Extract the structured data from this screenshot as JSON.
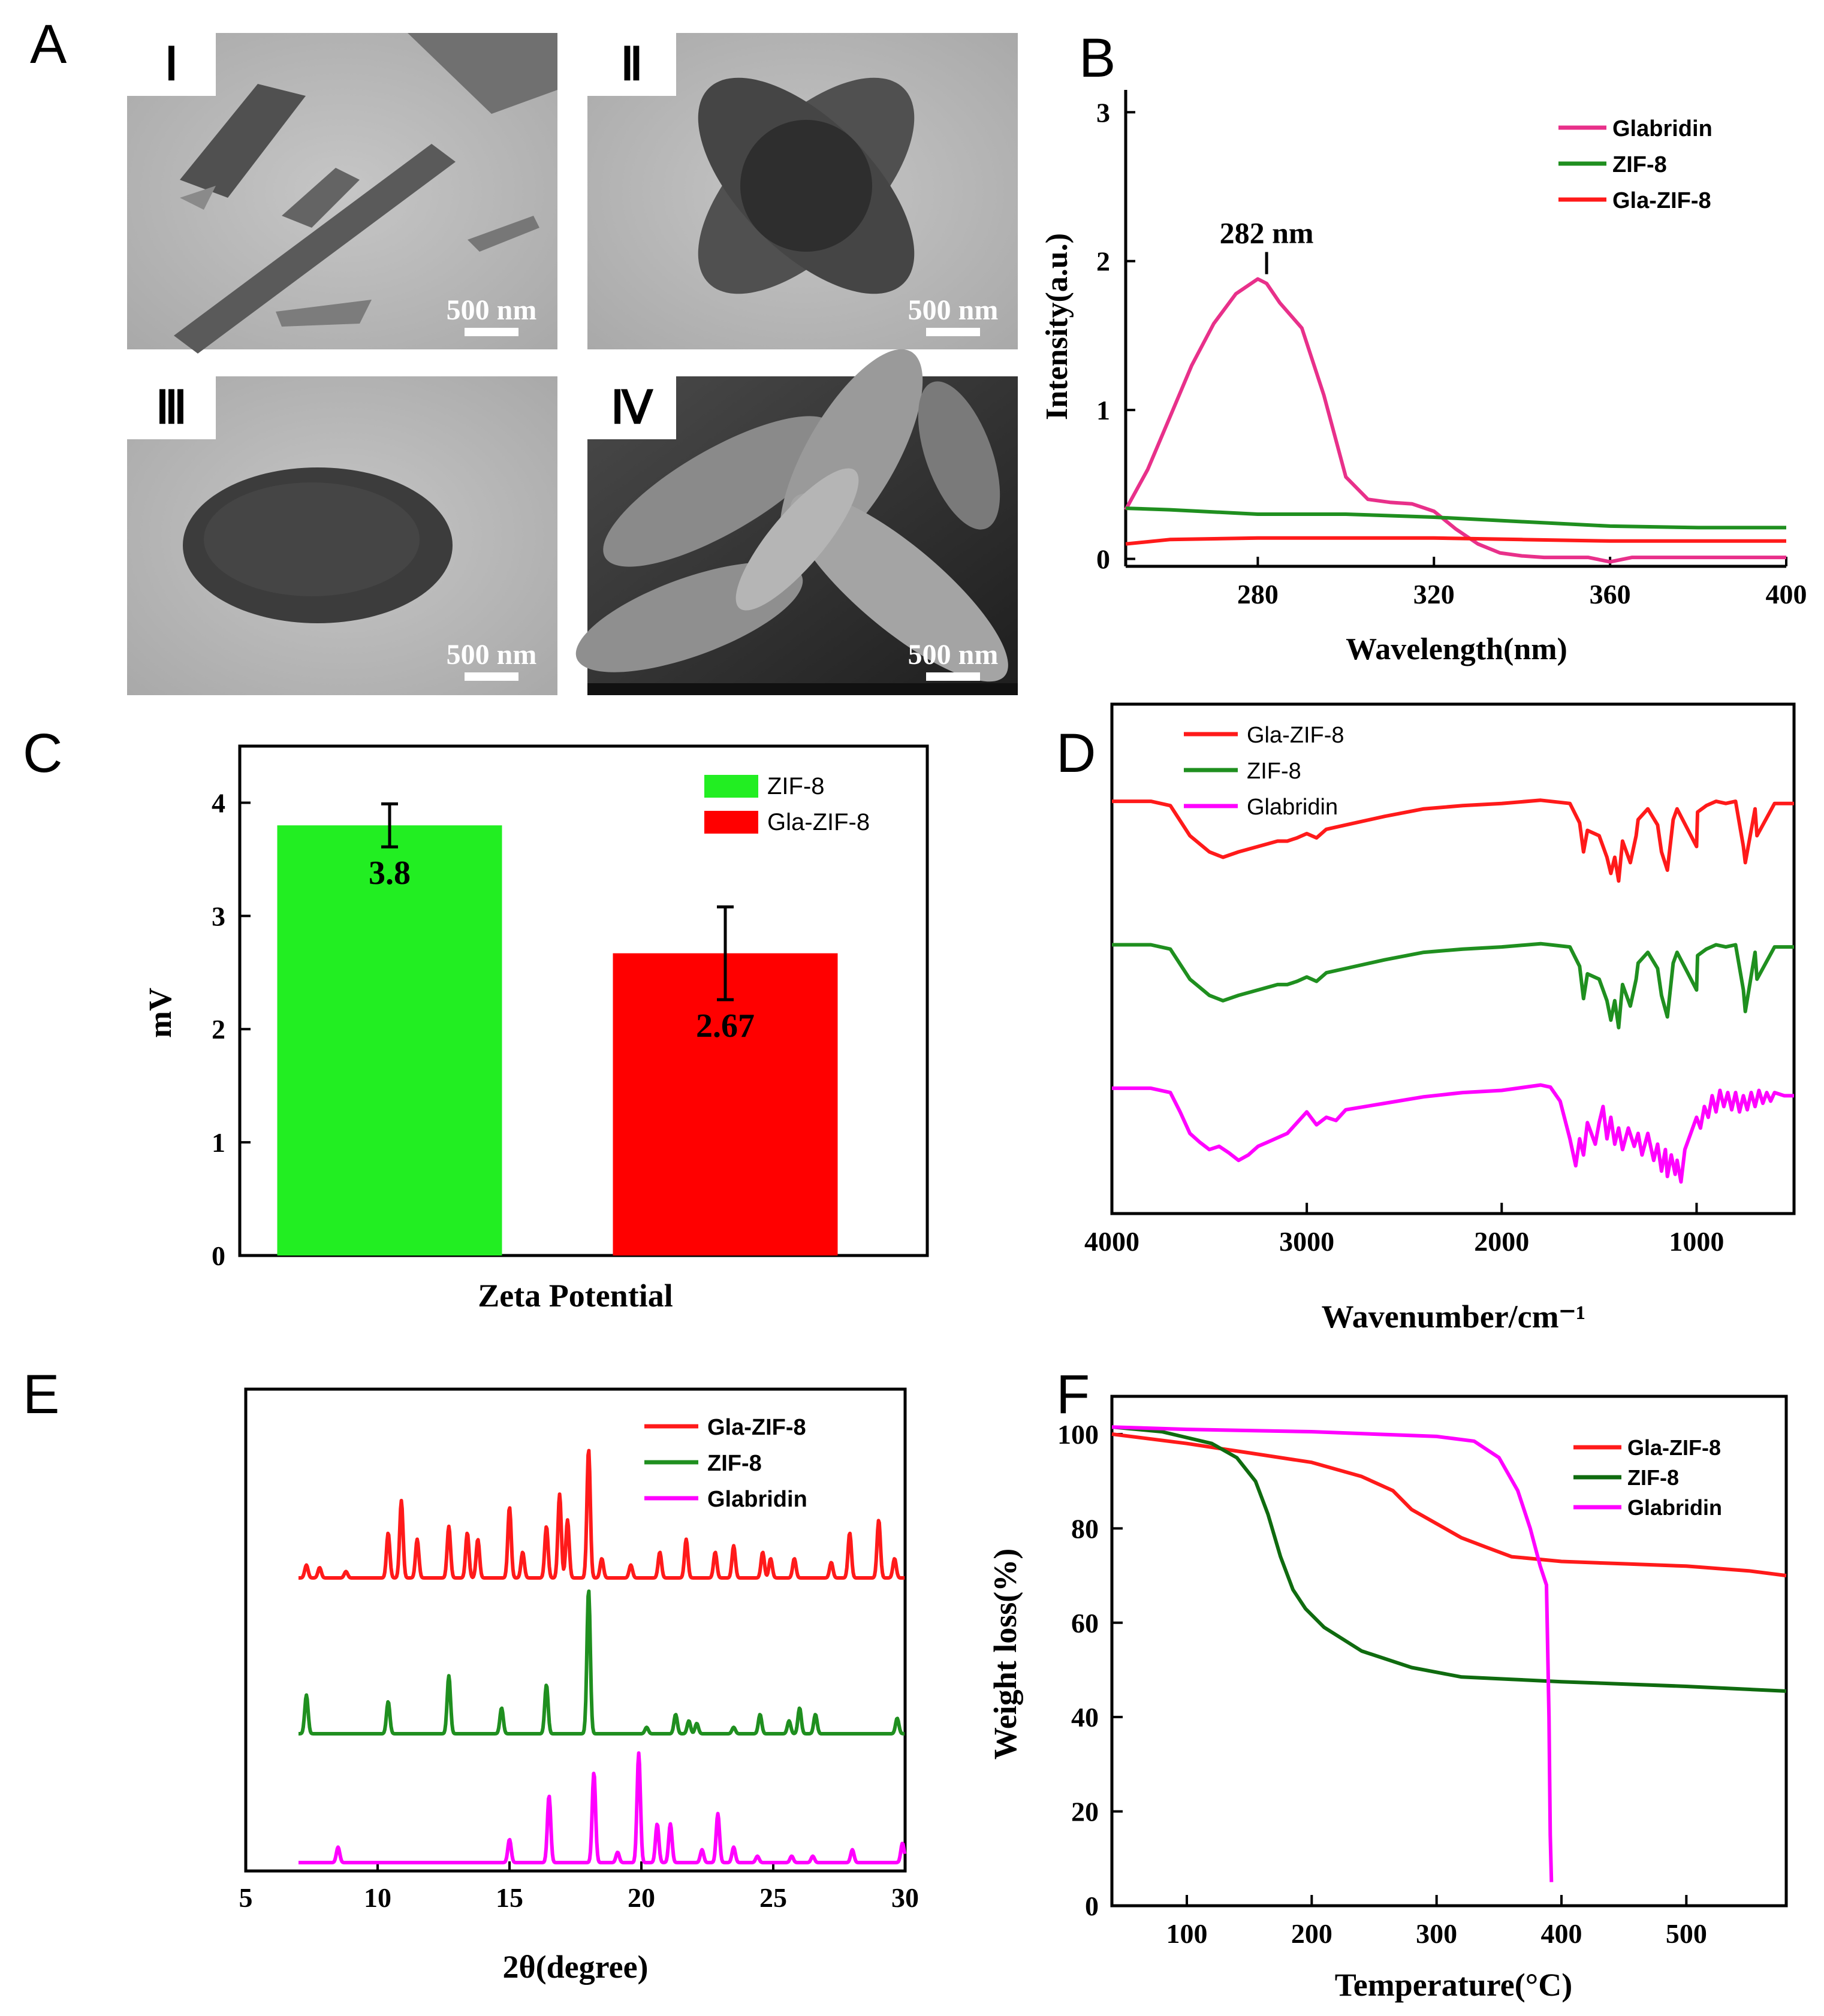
{
  "panel_letters": {
    "A": "A",
    "B": "B",
    "C": "C",
    "D": "D",
    "E": "E",
    "F": "F"
  },
  "micrographs": [
    {
      "label": "Ⅰ",
      "scale": "500 nm",
      "shape": "rods"
    },
    {
      "label": "Ⅱ",
      "scale": "500 nm",
      "shape": "cross"
    },
    {
      "label": "Ⅲ",
      "scale": "500 nm",
      "shape": "ellipse"
    },
    {
      "label": "Ⅳ",
      "scale": "500 nm",
      "shape": "sem"
    }
  ],
  "colors": {
    "pink": "#e8308a",
    "green": "#1f8f1f",
    "red": "#ff1a1a",
    "magenta": "#ff00ff",
    "darkgreen": "#0f6b0f",
    "bar_green": "#22ee22",
    "bar_red": "#ff0000"
  },
  "chart_data": [
    {
      "panel": "B",
      "type": "line",
      "xlabel": "Wavelength(nm)",
      "ylabel": "Intensity(a.u.)",
      "xlim": [
        250,
        400
      ],
      "ylim": [
        -0.05,
        3.15
      ],
      "xticks": [
        280,
        320,
        360,
        400
      ],
      "yticks": [
        0,
        1,
        2,
        3
      ],
      "annotation": {
        "text": "282 nm",
        "x": 282,
        "y": 1.88
      },
      "legend": "top-right",
      "series": [
        {
          "name": "Glabridin",
          "color": "#e8308a",
          "x": [
            250,
            255,
            260,
            265,
            270,
            275,
            280,
            282,
            285,
            290,
            295,
            300,
            305,
            310,
            315,
            320,
            325,
            330,
            335,
            340,
            345,
            350,
            355,
            360,
            365,
            370,
            380,
            390,
            400
          ],
          "y": [
            0.33,
            0.6,
            0.95,
            1.3,
            1.58,
            1.78,
            1.88,
            1.85,
            1.72,
            1.55,
            1.1,
            0.55,
            0.4,
            0.38,
            0.37,
            0.32,
            0.2,
            0.1,
            0.04,
            0.02,
            0.01,
            0.01,
            0.01,
            -0.02,
            0.01,
            0.01,
            0.01,
            0.01,
            0.01
          ]
        },
        {
          "name": "ZIF-8",
          "color": "#1f8f1f",
          "x": [
            250,
            260,
            280,
            300,
            320,
            340,
            360,
            380,
            400
          ],
          "y": [
            0.34,
            0.33,
            0.3,
            0.3,
            0.28,
            0.25,
            0.22,
            0.21,
            0.21
          ]
        },
        {
          "name": "Gla-ZIF-8",
          "color": "#ff1a1a",
          "x": [
            250,
            260,
            280,
            300,
            320,
            340,
            360,
            380,
            400
          ],
          "y": [
            0.1,
            0.13,
            0.14,
            0.14,
            0.14,
            0.13,
            0.12,
            0.12,
            0.12
          ]
        }
      ]
    },
    {
      "panel": "C",
      "type": "bar",
      "xlabel": "Zeta Potential",
      "ylabel": "mV",
      "ylim": [
        0,
        4.5
      ],
      "yticks": [
        0,
        1,
        2,
        3,
        4
      ],
      "legend": "top-right",
      "categories": [
        "ZIF-8",
        "Gla-ZIF-8"
      ],
      "values": [
        3.8,
        2.67
      ],
      "errors": [
        0.19,
        0.41
      ],
      "value_labels": [
        "3.8",
        "2.67"
      ],
      "bar_colors": [
        "#22ee22",
        "#ff0000"
      ]
    },
    {
      "panel": "D",
      "type": "line",
      "xlabel": "Wavenumber/cm⁻¹",
      "xlim": [
        4000,
        500
      ],
      "xticks": [
        4000,
        3000,
        2000,
        1000
      ],
      "legend": "top-left",
      "series": [
        {
          "name": "Gla-ZIF-8",
          "color": "#ff1a1a",
          "offset": 2.0,
          "x": [
            4000,
            3800,
            3700,
            3600,
            3500,
            3430,
            3350,
            3250,
            3150,
            3100,
            3050,
            3000,
            2950,
            2900,
            2800,
            2600,
            2400,
            2200,
            2000,
            1800,
            1650,
            1600,
            1580,
            1560,
            1500,
            1460,
            1440,
            1420,
            1400,
            1380,
            1340,
            1310,
            1300,
            1250,
            1200,
            1180,
            1150,
            1120,
            1100,
            1000,
            995,
            950,
            900,
            850,
            800,
            760,
            750,
            700,
            690,
            600,
            500
          ],
          "y": [
            0.92,
            0.92,
            0.88,
            0.6,
            0.45,
            0.4,
            0.45,
            0.5,
            0.55,
            0.55,
            0.58,
            0.62,
            0.58,
            0.66,
            0.7,
            0.78,
            0.85,
            0.88,
            0.9,
            0.93,
            0.9,
            0.72,
            0.45,
            0.65,
            0.6,
            0.4,
            0.25,
            0.4,
            0.18,
            0.55,
            0.35,
            0.6,
            0.75,
            0.85,
            0.7,
            0.45,
            0.28,
            0.75,
            0.85,
            0.5,
            0.82,
            0.88,
            0.92,
            0.9,
            0.92,
            0.5,
            0.35,
            0.85,
            0.6,
            0.9,
            0.9
          ]
        },
        {
          "name": "ZIF-8",
          "color": "#1f8f1f",
          "offset": 1.0,
          "x": [
            4000,
            3800,
            3700,
            3600,
            3500,
            3430,
            3350,
            3250,
            3150,
            3100,
            3050,
            3000,
            2950,
            2900,
            2800,
            2600,
            2400,
            2200,
            2000,
            1800,
            1650,
            1600,
            1580,
            1560,
            1500,
            1460,
            1440,
            1420,
            1400,
            1380,
            1340,
            1310,
            1300,
            1250,
            1200,
            1180,
            1150,
            1120,
            1100,
            1000,
            995,
            950,
            900,
            850,
            800,
            760,
            750,
            700,
            690,
            600,
            500
          ],
          "y": [
            0.92,
            0.92,
            0.88,
            0.6,
            0.45,
            0.4,
            0.45,
            0.5,
            0.55,
            0.55,
            0.58,
            0.62,
            0.58,
            0.66,
            0.7,
            0.78,
            0.85,
            0.88,
            0.9,
            0.93,
            0.9,
            0.72,
            0.42,
            0.65,
            0.6,
            0.4,
            0.22,
            0.4,
            0.15,
            0.55,
            0.35,
            0.6,
            0.75,
            0.85,
            0.7,
            0.45,
            0.25,
            0.75,
            0.85,
            0.5,
            0.82,
            0.88,
            0.92,
            0.9,
            0.92,
            0.5,
            0.3,
            0.85,
            0.6,
            0.9,
            0.9
          ]
        },
        {
          "name": "Glabridin",
          "color": "#ff00ff",
          "offset": 0.0,
          "x": [
            4000,
            3800,
            3700,
            3650,
            3600,
            3550,
            3500,
            3450,
            3400,
            3350,
            3300,
            3250,
            3200,
            3100,
            3050,
            3000,
            2950,
            2900,
            2850,
            2800,
            2600,
            2400,
            2200,
            2000,
            1800,
            1750,
            1700,
            1650,
            1620,
            1600,
            1580,
            1560,
            1520,
            1500,
            1480,
            1460,
            1440,
            1420,
            1400,
            1380,
            1350,
            1320,
            1300,
            1280,
            1250,
            1220,
            1200,
            1180,
            1160,
            1150,
            1130,
            1110,
            1100,
            1080,
            1060,
            1040,
            1000,
            980,
            960,
            940,
            920,
            900,
            880,
            860,
            840,
            820,
            800,
            780,
            760,
            740,
            720,
            700,
            680,
            660,
            640,
            620,
            600,
            550,
            500
          ],
          "y": [
            0.92,
            0.92,
            0.88,
            0.7,
            0.5,
            0.42,
            0.35,
            0.38,
            0.32,
            0.25,
            0.3,
            0.38,
            0.42,
            0.5,
            0.6,
            0.7,
            0.58,
            0.65,
            0.62,
            0.72,
            0.78,
            0.84,
            0.88,
            0.9,
            0.95,
            0.93,
            0.8,
            0.45,
            0.2,
            0.45,
            0.3,
            0.6,
            0.4,
            0.6,
            0.75,
            0.45,
            0.65,
            0.4,
            0.55,
            0.35,
            0.55,
            0.38,
            0.5,
            0.3,
            0.5,
            0.25,
            0.4,
            0.15,
            0.35,
            0.1,
            0.3,
            0.12,
            0.25,
            0.05,
            0.35,
            0.45,
            0.65,
            0.55,
            0.75,
            0.65,
            0.85,
            0.7,
            0.9,
            0.75,
            0.88,
            0.72,
            0.88,
            0.7,
            0.85,
            0.72,
            0.88,
            0.75,
            0.9,
            0.78,
            0.88,
            0.8,
            0.88,
            0.85,
            0.85
          ]
        }
      ]
    },
    {
      "panel": "E",
      "type": "line",
      "xlabel": "2θ(degree)",
      "xlim": [
        5,
        30
      ],
      "xticks": [
        5,
        10,
        15,
        20,
        25,
        30
      ],
      "legend": "top-right",
      "series": [
        {
          "name": "Gla-ZIF-8",
          "color": "#ff1a1a",
          "offset": 2.0,
          "peaks": [
            [
              7.3,
              0.1
            ],
            [
              7.8,
              0.08
            ],
            [
              8.8,
              0.05
            ],
            [
              10.4,
              0.35
            ],
            [
              10.9,
              0.6
            ],
            [
              11.5,
              0.3
            ],
            [
              12.7,
              0.4
            ],
            [
              13.4,
              0.35
            ],
            [
              13.8,
              0.3
            ],
            [
              15.0,
              0.55
            ],
            [
              15.5,
              0.2
            ],
            [
              16.4,
              0.4
            ],
            [
              16.9,
              0.65
            ],
            [
              17.2,
              0.45
            ],
            [
              18.0,
              1.0
            ],
            [
              18.5,
              0.15
            ],
            [
              19.6,
              0.1
            ],
            [
              20.7,
              0.2
            ],
            [
              21.7,
              0.3
            ],
            [
              22.8,
              0.2
            ],
            [
              23.5,
              0.25
            ],
            [
              24.6,
              0.2
            ],
            [
              24.9,
              0.15
            ],
            [
              25.8,
              0.15
            ],
            [
              27.2,
              0.12
            ],
            [
              27.9,
              0.35
            ],
            [
              29.0,
              0.45
            ],
            [
              29.6,
              0.15
            ]
          ]
        },
        {
          "name": "ZIF-8",
          "color": "#1f8f1f",
          "offset": 1.0,
          "peaks": [
            [
              7.3,
              0.3
            ],
            [
              10.4,
              0.25
            ],
            [
              12.7,
              0.45
            ],
            [
              14.7,
              0.2
            ],
            [
              16.4,
              0.38
            ],
            [
              18.0,
              1.12
            ],
            [
              20.2,
              0.05
            ],
            [
              21.3,
              0.15
            ],
            [
              21.8,
              0.1
            ],
            [
              22.1,
              0.08
            ],
            [
              23.5,
              0.05
            ],
            [
              24.5,
              0.15
            ],
            [
              25.6,
              0.1
            ],
            [
              26.0,
              0.2
            ],
            [
              26.6,
              0.15
            ],
            [
              29.7,
              0.12
            ]
          ]
        },
        {
          "name": "Glabridin",
          "color": "#ff00ff",
          "offset": 0.0,
          "peaks": [
            [
              8.5,
              0.12
            ],
            [
              15.0,
              0.18
            ],
            [
              16.5,
              0.52
            ],
            [
              18.2,
              0.7
            ],
            [
              19.1,
              0.08
            ],
            [
              19.9,
              0.85
            ],
            [
              20.6,
              0.3
            ],
            [
              21.1,
              0.3
            ],
            [
              22.3,
              0.1
            ],
            [
              22.9,
              0.38
            ],
            [
              23.5,
              0.12
            ],
            [
              24.4,
              0.05
            ],
            [
              25.7,
              0.05
            ],
            [
              26.5,
              0.05
            ],
            [
              28.0,
              0.1
            ],
            [
              29.9,
              0.15
            ]
          ]
        }
      ]
    },
    {
      "panel": "F",
      "type": "line",
      "xlabel": "Temperature(°C)",
      "ylabel": "Weight loss(%)",
      "xlim": [
        40,
        580
      ],
      "ylim": [
        0,
        108
      ],
      "xticks": [
        100,
        200,
        300,
        400,
        500
      ],
      "yticks": [
        0,
        20,
        40,
        60,
        80,
        100
      ],
      "legend": "top-right",
      "series": [
        {
          "name": "Gla-ZIF-8",
          "color": "#ff1a1a",
          "x": [
            40,
            100,
            150,
            200,
            240,
            265,
            280,
            300,
            320,
            340,
            360,
            380,
            400,
            450,
            500,
            550,
            580
          ],
          "y": [
            100,
            98,
            96,
            94,
            91,
            88,
            84,
            81,
            78,
            76,
            74,
            73.5,
            73,
            72.5,
            72,
            71,
            70
          ]
        },
        {
          "name": "ZIF-8",
          "color": "#0f6b0f",
          "x": [
            40,
            80,
            120,
            140,
            155,
            165,
            175,
            185,
            195,
            210,
            240,
            280,
            320,
            360,
            400,
            450,
            500,
            580
          ],
          "y": [
            101.5,
            100.5,
            98,
            95,
            90,
            83,
            74,
            67,
            63,
            59,
            54,
            50.5,
            48.5,
            48,
            47.5,
            47,
            46.5,
            45.5
          ]
        },
        {
          "name": "Glabridin",
          "color": "#ff00ff",
          "x": [
            40,
            100,
            200,
            300,
            330,
            350,
            365,
            375,
            383,
            388,
            390,
            391,
            392
          ],
          "y": [
            101.5,
            101,
            100.5,
            99.5,
            98.5,
            95,
            88,
            80,
            72,
            68,
            40,
            15,
            5
          ]
        }
      ]
    }
  ]
}
